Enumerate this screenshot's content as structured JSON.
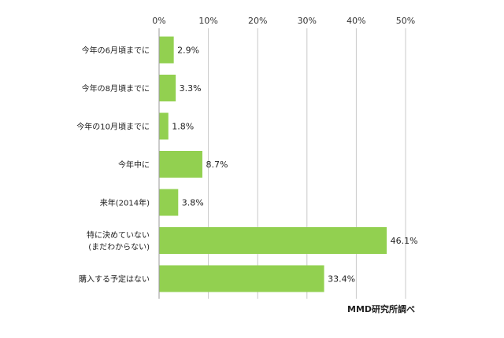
{
  "chart_data": {
    "type": "bar",
    "orientation": "horizontal",
    "categories": [
      [
        "今年の6月頃までに"
      ],
      [
        "今年の8月頃までに"
      ],
      [
        "今年の10月頃までに"
      ],
      [
        "今年中に"
      ],
      [
        "来年(2014年)"
      ],
      [
        "特に決めていない",
        "(まだわからない)"
      ],
      [
        "購入する予定はない"
      ]
    ],
    "values": [
      2.9,
      3.3,
      1.8,
      8.7,
      3.8,
      46.1,
      33.4
    ],
    "value_labels": [
      "2.9%",
      "3.3%",
      "1.8%",
      "8.7%",
      "3.8%",
      "46.1%",
      "33.4%"
    ],
    "xlim": [
      0,
      50
    ],
    "x_ticks": [
      0,
      10,
      20,
      30,
      40,
      50
    ],
    "x_tick_labels": [
      "0%",
      "10%",
      "20%",
      "30%",
      "40%",
      "50%"
    ],
    "x_axis_position": "top",
    "grid": true,
    "bar_color": "#92d050",
    "source": "MMD研究所調べ"
  }
}
